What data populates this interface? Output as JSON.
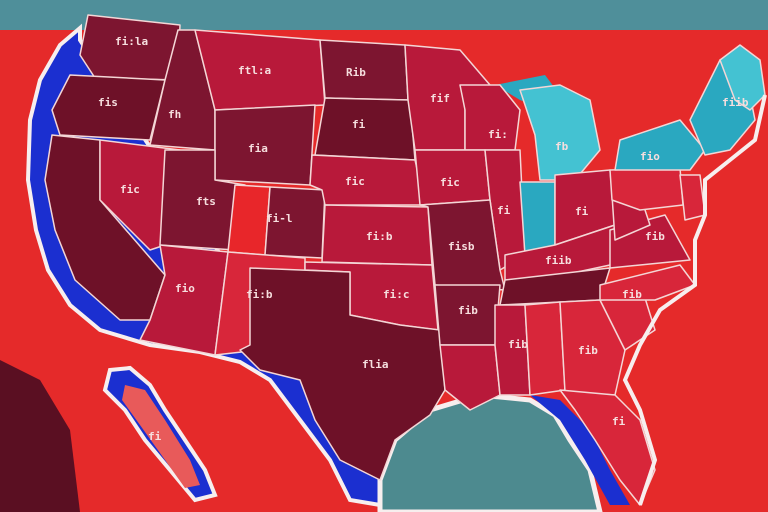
{
  "colors": {
    "background": "#e52a2a",
    "top_band": "#4f8f9a",
    "ocean_blue": "#1b2fd0",
    "gulf": "#4d8a8f",
    "coast_white": "#f7eeee",
    "dark_red": "#6e1128",
    "maroon": "#7d1530",
    "crimson": "#b8193a",
    "red": "#d8263a",
    "bright_red": "#e8262a",
    "teal": "#2aa8c0",
    "light_teal": "#44c2d2"
  },
  "labels": [
    {
      "name": "label-washington",
      "text": "fi:la"
    },
    {
      "name": "label-oregon",
      "text": "fis"
    },
    {
      "name": "label-idaho",
      "text": "fh"
    },
    {
      "name": "label-montana",
      "text": "ftl:a"
    },
    {
      "name": "label-north-dakota",
      "text": "Rib"
    },
    {
      "name": "label-south-dakota",
      "text": "fi"
    },
    {
      "name": "label-wyoming",
      "text": "fia"
    },
    {
      "name": "label-nebraska",
      "text": "fic"
    },
    {
      "name": "label-nevada",
      "text": "fic"
    },
    {
      "name": "label-utah",
      "text": "fts"
    },
    {
      "name": "label-colorado",
      "text": "fi-l"
    },
    {
      "name": "label-minnesota",
      "text": "fif"
    },
    {
      "name": "label-wisconsin",
      "text": "fi:"
    },
    {
      "name": "label-michigan",
      "text": "fb"
    },
    {
      "name": "label-iowa",
      "text": "fic"
    },
    {
      "name": "label-illinois",
      "text": "fi"
    },
    {
      "name": "label-kansas",
      "text": "fi:b"
    },
    {
      "name": "label-missouri",
      "text": "fisb"
    },
    {
      "name": "label-arizona",
      "text": "fio"
    },
    {
      "name": "label-new-mexico",
      "text": "fi:b"
    },
    {
      "name": "label-oklahoma",
      "text": "fi:c"
    },
    {
      "name": "label-arkansas",
      "text": "fib"
    },
    {
      "name": "label-texas",
      "text": "flia"
    },
    {
      "name": "label-mississippi",
      "text": "fib"
    },
    {
      "name": "label-georgia",
      "text": "fib"
    },
    {
      "name": "label-kentucky",
      "text": "fiib"
    },
    {
      "name": "label-ohio",
      "text": "fi"
    },
    {
      "name": "label-new-york",
      "text": "fio"
    },
    {
      "name": "label-virginia",
      "text": "fib"
    },
    {
      "name": "label-north-carolina",
      "text": "fib"
    },
    {
      "name": "label-maine",
      "text": "fiib"
    },
    {
      "name": "label-florida",
      "text": "fi"
    },
    {
      "name": "label-baja",
      "text": "fi"
    }
  ]
}
